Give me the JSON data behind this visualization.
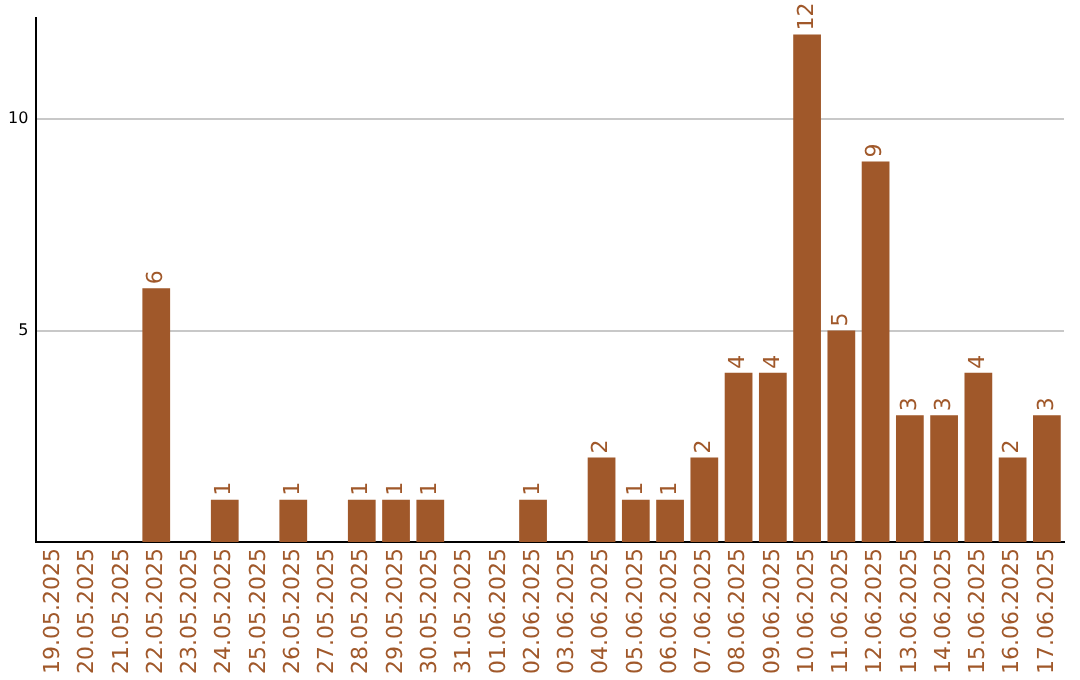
{
  "chart_data": {
    "type": "bar",
    "categories": [
      "19.05.2025",
      "20.05.2025",
      "21.05.2025",
      "22.05.2025",
      "23.05.2025",
      "24.05.2025",
      "25.05.2025",
      "26.05.2025",
      "27.05.2025",
      "28.05.2025",
      "29.05.2025",
      "30.05.2025",
      "31.05.2025",
      "01.06.2025",
      "02.06.2025",
      "03.06.2025",
      "04.06.2025",
      "05.06.2025",
      "06.06.2025",
      "07.06.2025",
      "08.06.2025",
      "09.06.2025",
      "10.06.2025",
      "11.06.2025",
      "12.06.2025",
      "13.06.2025",
      "14.06.2025",
      "15.06.2025",
      "16.06.2025",
      "17.06.2025"
    ],
    "values": [
      0,
      0,
      0,
      6,
      0,
      1,
      0,
      1,
      0,
      1,
      1,
      1,
      0,
      0,
      1,
      0,
      2,
      1,
      1,
      2,
      4,
      4,
      12,
      5,
      9,
      3,
      3,
      4,
      2,
      3
    ],
    "value_labels": [
      null,
      null,
      null,
      "6",
      null,
      "1",
      null,
      "1",
      null,
      "1",
      "1",
      "1",
      null,
      null,
      "1",
      null,
      "2",
      "1",
      "1",
      "2",
      "4",
      "4",
      "12",
      "5",
      "9",
      "3",
      "3",
      "4",
      "2",
      "3"
    ],
    "color": "#a0582a",
    "ylim": [
      0,
      12.4
    ],
    "yticks": [
      5,
      10
    ],
    "grid": "y",
    "legend": false
  }
}
